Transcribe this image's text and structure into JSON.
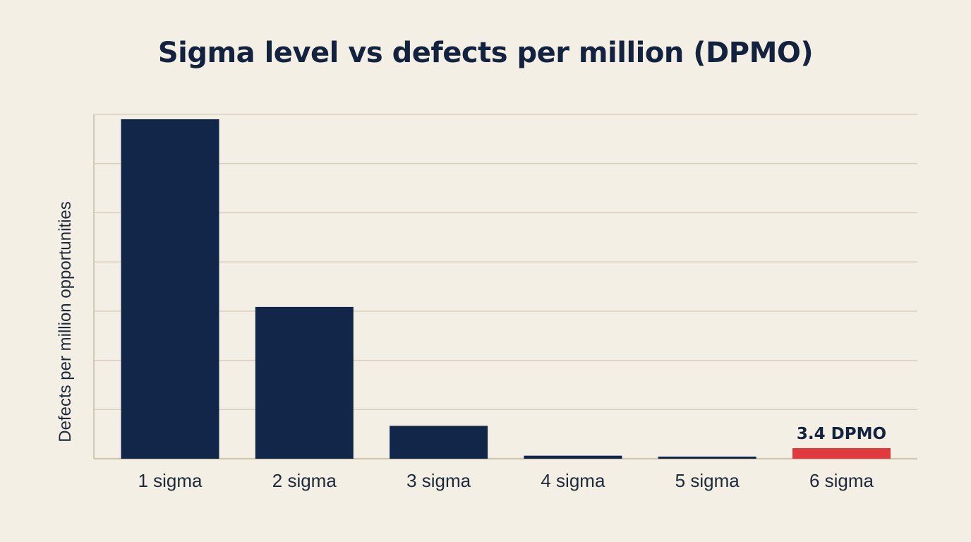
{
  "chart_data": {
    "type": "bar",
    "title": "Sigma level vs defects per million (DPMO)",
    "xlabel": "",
    "ylabel": "Defects per million opportunities",
    "categories": [
      "1 sigma",
      "2 sigma",
      "3 sigma",
      "4 sigma",
      "5 sigma",
      "6 sigma"
    ],
    "values": [
      690000,
      308537,
      66807,
      6210,
      233,
      3.4
    ],
    "bar_colors": [
      "#12264a",
      "#12264a",
      "#12264a",
      "#12264a",
      "#12264a",
      "#e0393e"
    ],
    "data_labels": [
      "",
      "",
      "",
      "",
      "",
      "3.4 DPMO"
    ],
    "ylim": [
      0,
      700000
    ],
    "grid": true,
    "legend": "none"
  }
}
